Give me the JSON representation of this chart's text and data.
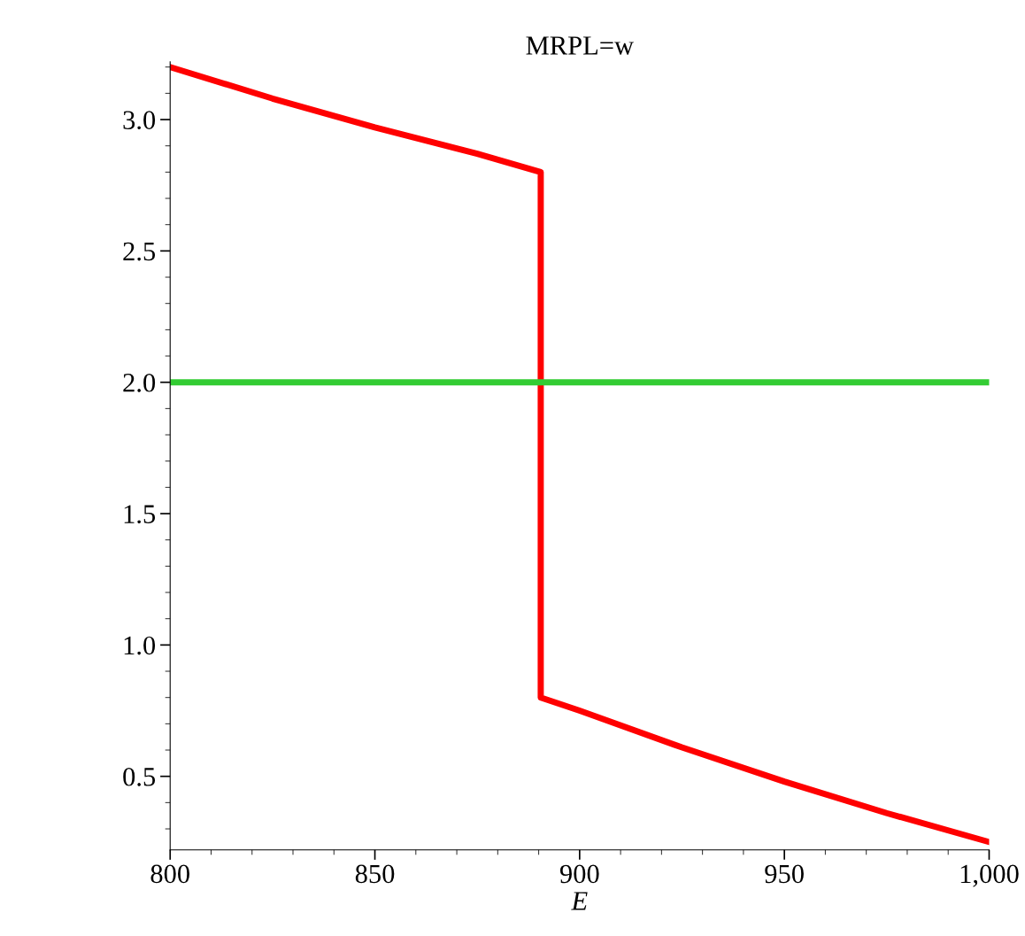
{
  "chart_data": {
    "type": "line",
    "title": "MRPL=w",
    "xlabel": "E",
    "series": [
      {
        "color": "#ff0000",
        "x": [
          800,
          825,
          850,
          875,
          890.5,
          890.5,
          900,
          925,
          950,
          975,
          1000
        ],
        "values": [
          3.2,
          3.08,
          2.97,
          2.87,
          2.8,
          0.8,
          0.75,
          0.61,
          0.48,
          0.36,
          0.25
        ]
      },
      {
        "color": "#33cc33",
        "x": [
          800,
          1000
        ],
        "values": [
          2.0,
          2.0
        ]
      }
    ],
    "xlim": [
      800,
      1000
    ],
    "ylim": [
      0.22,
      3.22
    ],
    "xticks": [
      800,
      850,
      900,
      950,
      {
        "value": 1000,
        "label": "1,000"
      }
    ],
    "yticks": [
      0.5,
      {
        "value": 1,
        "label": "1.0"
      },
      1.5,
      {
        "value": 2,
        "label": "2.0"
      },
      2.5,
      {
        "value": 3,
        "label": "3.0"
      }
    ],
    "grid": false,
    "legend": false,
    "marker": "none",
    "line_style": "solid"
  }
}
